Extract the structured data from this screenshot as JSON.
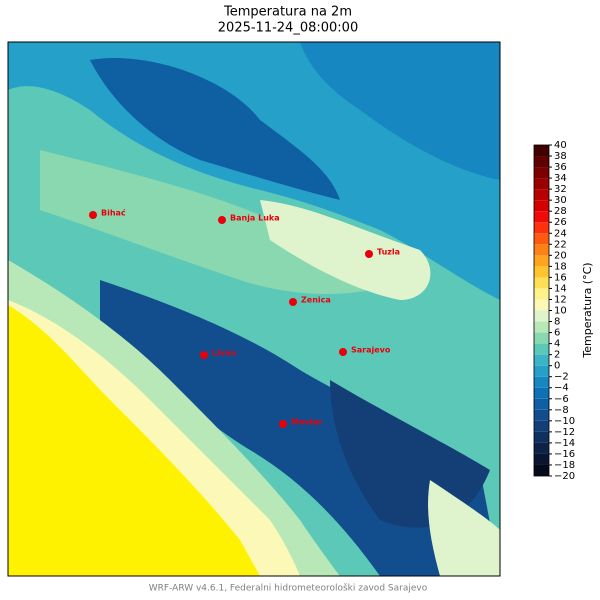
{
  "title": "Temperatura na 2m",
  "subtitle": "2025-11-24_08:00:00",
  "cities": [
    "Bihać",
    "Banja Luka",
    "Tuzla",
    "Zenica",
    "Sarajevo",
    "Livno",
    "Mostar"
  ],
  "colorbar": {
    "label": "Temperatura (°C)",
    "lim": [
      -20,
      40
    ],
    "ticks": [
      {
        "value": -20,
        "label": "−20"
      },
      {
        "value": -18,
        "label": "−18"
      },
      {
        "value": -16,
        "label": "−16"
      },
      {
        "value": -14,
        "label": "−14"
      },
      {
        "value": -12,
        "label": "−12"
      },
      {
        "value": -10,
        "label": "−10"
      },
      {
        "value": -8,
        "label": "−8"
      },
      {
        "value": -6,
        "label": "−6"
      },
      {
        "value": -4,
        "label": "−4"
      },
      {
        "value": -2,
        "label": "−2"
      },
      0,
      2,
      4,
      6,
      8,
      10,
      12,
      14,
      16,
      18,
      20,
      22,
      24,
      26,
      28,
      30,
      32,
      34,
      36,
      38,
      40
    ],
    "colors": [
      "#050a1a",
      "#0a1630",
      "#0d2347",
      "#10315e",
      "#133f76",
      "#124e8d",
      "#0f5fa3",
      "#0c72b5",
      "#1787c2",
      "#25a0c8",
      "#3bb5c5",
      "#5cc8b7",
      "#8ad8b0",
      "#b8e8b8",
      "#dff3cd",
      "#fbf8b8",
      "#fff28a",
      "#ffe055",
      "#ffc42e",
      "#ffa41e",
      "#ff8015",
      "#ff5a10",
      "#ff300c",
      "#f00a0a",
      "#d40000",
      "#b80000",
      "#9a0000",
      "#7c0000",
      "#5e0000",
      "#400000"
    ]
  },
  "footer": "WRF-ARW v4.6.1, Federalni hidrometeorološki zavod Sarajevo"
}
